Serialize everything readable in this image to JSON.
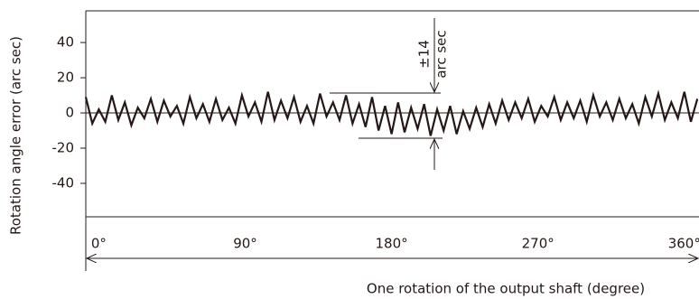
{
  "chart_data": {
    "type": "line",
    "y_label": "Rotation angle error (arc sec)",
    "x_label": "One rotation of the output shaft (degree)",
    "annotations": [
      {
        "text": "±14"
      },
      {
        "text": "arc sec"
      }
    ],
    "ylim": [
      -59,
      58
    ],
    "yticks": [
      40,
      20,
      0,
      -20,
      -40
    ],
    "xlim": [
      -8,
      369
    ],
    "xticks": [
      {
        "value": 0,
        "label": "0°"
      },
      {
        "value": 90,
        "label": "90°"
      },
      {
        "value": 180,
        "label": "180°"
      },
      {
        "value": 270,
        "label": "270°"
      },
      {
        "value": 360,
        "label": "360°"
      }
    ],
    "zero_line": true,
    "x": [
      -8,
      -4,
      0,
      4,
      8,
      12,
      16,
      20,
      24,
      28,
      32,
      36,
      40,
      44,
      48,
      52,
      56,
      60,
      64,
      68,
      72,
      76,
      80,
      84,
      88,
      92,
      96,
      100,
      104,
      108,
      112,
      116,
      120,
      124,
      128,
      132,
      136,
      140,
      144,
      148,
      152,
      156,
      160,
      164,
      168,
      172,
      176,
      180,
      184,
      188,
      192,
      196,
      200,
      204,
      208,
      212,
      216,
      220,
      224,
      228,
      232,
      236,
      240,
      244,
      248,
      252,
      256,
      260,
      264,
      268,
      272,
      276,
      280,
      284,
      288,
      292,
      296,
      300,
      304,
      308,
      312,
      316,
      320,
      324,
      328,
      332,
      336,
      340,
      344,
      348,
      352,
      356,
      360,
      364,
      368
    ],
    "series": [
      {
        "color": "#231815",
        "values": [
          9,
          -6,
          2,
          -5,
          10,
          -4,
          6,
          -7,
          3,
          -3,
          8,
          -5,
          7,
          -2,
          4,
          -6,
          9,
          -3,
          5,
          -5,
          8,
          -4,
          3,
          -6,
          10,
          -2,
          6,
          -5,
          12,
          -4,
          7,
          -3,
          9,
          -5,
          4,
          -6,
          11,
          -2,
          6,
          -4,
          10,
          -6,
          5,
          -8,
          9,
          -10,
          4,
          -12,
          6,
          -11,
          3,
          -9,
          5,
          -13,
          2,
          -10,
          4,
          -12,
          1,
          -9,
          3,
          -8,
          5,
          -6,
          7,
          -4,
          6,
          -3,
          8,
          -5,
          4,
          -2,
          9,
          -4,
          6,
          -3,
          7,
          -5,
          10,
          -2,
          6,
          -4,
          8,
          -3,
          5,
          -6,
          9,
          -2,
          11,
          -4,
          6,
          -3,
          12,
          -5,
          8
        ]
      }
    ]
  }
}
